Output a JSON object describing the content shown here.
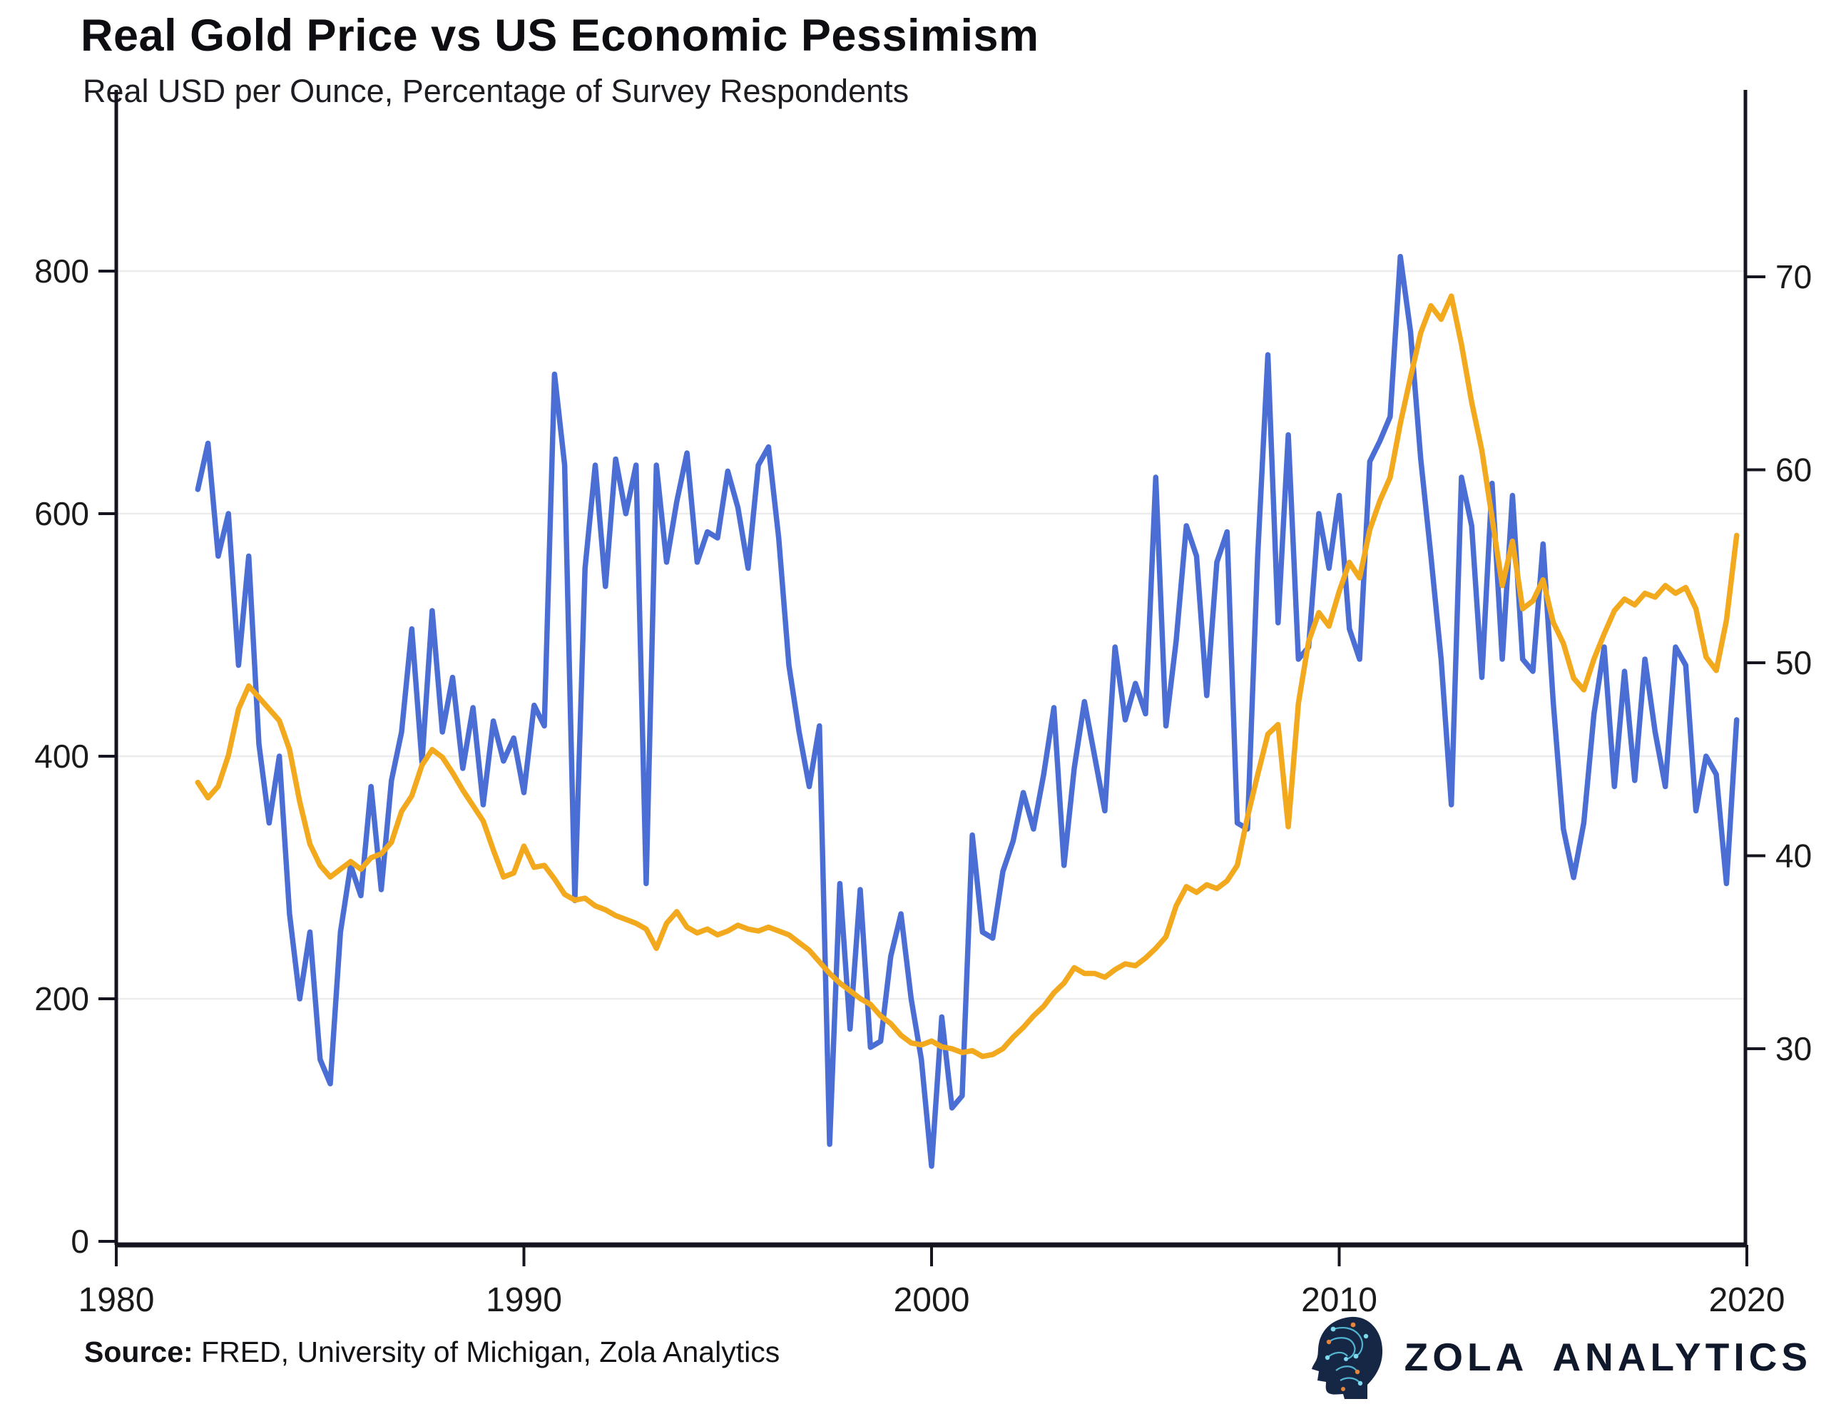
{
  "header": {
    "title": "Real Gold Price vs US Economic Pessimism",
    "subtitle": "Real USD per Ounce, Percentage of Survey Respondents"
  },
  "footer": {
    "source_label": "Source:",
    "source_text": " FRED, University of Michigan, Zola Analytics",
    "brand_word1": "ZOLA",
    "brand_word2": "ANALYTICS",
    "logo_icon": "brain-circuit-logo"
  },
  "colors": {
    "gold_line": "#4a6ed4",
    "pessimism_line": "#f2a91e",
    "axis": "#15151f",
    "grid": "#ececec",
    "tick_text": "#1a1a1a",
    "brand_navy": "#10182b",
    "logo_fill": "#152744",
    "logo_circuit": "#59c4e0",
    "logo_accent": "#e8833a"
  },
  "chart_data": {
    "type": "line",
    "title": "Real Gold Price vs US Economic Pessimism",
    "subtitle": "Real USD per Ounce, Percentage of Survey Respondents",
    "xlabel": "",
    "ylabel_left": "Real USD per Ounce",
    "ylabel_right": "Percentage of Survey Respondents",
    "grid": "horizontal-left-axis",
    "legend": "none",
    "x_ticks": [
      1980,
      1990,
      2000,
      2010,
      2020
    ],
    "y_left_ticks": [
      0,
      200,
      400,
      600,
      800
    ],
    "y_right_ticks": [
      30,
      40,
      50,
      60,
      70
    ],
    "x_range": [
      1980,
      2020
    ],
    "y_left_range": [
      0,
      947
    ],
    "y_right_range": [
      25.1,
      75.0
    ],
    "x": [
      1982,
      1982.25,
      1982.5,
      1982.75,
      1983,
      1983.25,
      1983.5,
      1983.75,
      1984,
      1984.25,
      1984.5,
      1984.75,
      1985,
      1985.25,
      1985.5,
      1985.75,
      1986,
      1986.25,
      1986.5,
      1986.75,
      1987,
      1987.25,
      1987.5,
      1987.75,
      1988,
      1988.25,
      1988.5,
      1988.75,
      1989,
      1989.25,
      1989.5,
      1989.75,
      1990,
      1990.25,
      1990.5,
      1990.75,
      1991,
      1991.25,
      1991.5,
      1991.75,
      1992,
      1992.25,
      1992.5,
      1992.75,
      1993,
      1993.25,
      1993.5,
      1993.75,
      1994,
      1994.25,
      1994.5,
      1994.75,
      1995,
      1995.25,
      1995.5,
      1995.75,
      1996,
      1996.25,
      1996.5,
      1996.75,
      1997,
      1997.25,
      1997.5,
      1997.75,
      1998,
      1998.25,
      1998.5,
      1998.75,
      1999,
      1999.25,
      1999.5,
      1999.75,
      2000,
      2000.25,
      2000.5,
      2000.75,
      2001,
      2001.25,
      2001.5,
      2001.75,
      2002,
      2002.25,
      2002.5,
      2002.75,
      2003,
      2003.25,
      2003.5,
      2003.75,
      2004,
      2004.25,
      2004.5,
      2004.75,
      2005,
      2005.25,
      2005.5,
      2005.75,
      2006,
      2006.25,
      2006.5,
      2006.75,
      2007,
      2007.25,
      2007.5,
      2007.75,
      2008,
      2008.25,
      2008.5,
      2008.75,
      2009,
      2009.25,
      2009.5,
      2009.75,
      2010,
      2010.25,
      2010.5,
      2010.75,
      2011,
      2011.25,
      2011.5,
      2011.75,
      2012,
      2012.25,
      2012.5,
      2012.75,
      2013,
      2013.25,
      2013.5,
      2013.75,
      2014,
      2014.25,
      2014.5,
      2014.75,
      2015,
      2015.25,
      2015.5,
      2015.75,
      2016,
      2016.25,
      2016.5,
      2016.75,
      2017,
      2017.25,
      2017.5,
      2017.75,
      2018,
      2018.25,
      2018.5,
      2018.75,
      2019,
      2019.25,
      2019.5,
      2019.75
    ],
    "series": [
      {
        "name": "Real Gold Price (left axis, Real USD per Ounce)",
        "axis": "left",
        "color": "#4a6ed4",
        "values": [
          620,
          658,
          565,
          600,
          475,
          565,
          410,
          345,
          400,
          270,
          200,
          255,
          150,
          130,
          255,
          310,
          285,
          375,
          290,
          380,
          420,
          505,
          395,
          520,
          420,
          465,
          390,
          440,
          360,
          429,
          396,
          415,
          370,
          442,
          425,
          715,
          640,
          281,
          555,
          640,
          540,
          645,
          600,
          640,
          295,
          640,
          560,
          610,
          650,
          560,
          585,
          580,
          635,
          605,
          555,
          640,
          655,
          580,
          475,
          420,
          375,
          425,
          80,
          295,
          175,
          290,
          160,
          165,
          235,
          270,
          200,
          150,
          62,
          185,
          110,
          120,
          335,
          255,
          250,
          305,
          330,
          370,
          340,
          385,
          440,
          310,
          390,
          445,
          400,
          355,
          490,
          430,
          460,
          435,
          630,
          425,
          495,
          590,
          565,
          450,
          560,
          585,
          345,
          340,
          565,
          731,
          510,
          665,
          480,
          490,
          600,
          555,
          615,
          505,
          480,
          643,
          660,
          680,
          812,
          750,
          645,
          565,
          480,
          360,
          630,
          590,
          465,
          625,
          480,
          615,
          480,
          470,
          575,
          445,
          340,
          300,
          345,
          435,
          490,
          375,
          470,
          380,
          480,
          420,
          375,
          490,
          475,
          355,
          400,
          385,
          295,
          430
        ]
      },
      {
        "name": "US Economic Pessimism (right axis, % of survey respondents)",
        "axis": "right",
        "color": "#f2a91e",
        "values": [
          43.8,
          43,
          43.6,
          45.2,
          47.6,
          48.8,
          48.2,
          47.6,
          47,
          45.5,
          42.8,
          40.6,
          39.5,
          38.9,
          39.3,
          39.7,
          39.3,
          39.9,
          40.1,
          40.7,
          42.3,
          43.1,
          44.7,
          45.5,
          45.1,
          44.3,
          43.4,
          42.6,
          41.8,
          40.3,
          38.9,
          39.1,
          40.5,
          39.4,
          39.5,
          38.8,
          38,
          37.7,
          37.8,
          37.4,
          37.2,
          36.9,
          36.7,
          36.5,
          36.2,
          35.2,
          36.5,
          37.1,
          36.3,
          36,
          36.2,
          35.9,
          36.1,
          36.4,
          36.2,
          36.1,
          36.3,
          36.1,
          35.9,
          35.5,
          35.1,
          34.5,
          33.9,
          33.4,
          33,
          32.6,
          32.3,
          31.7,
          31.3,
          30.7,
          30.3,
          30.2,
          30.4,
          30.1,
          30,
          29.8,
          29.9,
          29.6,
          29.7,
          30,
          30.6,
          31.1,
          31.7,
          32.2,
          32.9,
          33.4,
          34.2,
          33.9,
          33.9,
          33.7,
          34.1,
          34.4,
          34.3,
          34.7,
          35.2,
          35.8,
          37.4,
          38.4,
          38.1,
          38.5,
          38.3,
          38.7,
          39.5,
          42,
          44.2,
          46.3,
          46.8,
          41.5,
          47.9,
          51.1,
          52.6,
          51.9,
          53.7,
          55.2,
          54.4,
          56.9,
          58.4,
          59.6,
          62.4,
          64.8,
          67.1,
          68.5,
          67.8,
          69,
          66.5,
          63.5,
          61,
          57.5,
          54,
          56.3,
          52.8,
          53.2,
          54.3,
          52.1,
          51,
          49.2,
          48.6,
          50.2,
          51.5,
          52.7,
          53.3,
          53,
          53.6,
          53.4,
          54,
          53.6,
          53.9,
          52.8,
          50.3,
          49.6,
          52.2,
          56.6
        ]
      }
    ]
  }
}
